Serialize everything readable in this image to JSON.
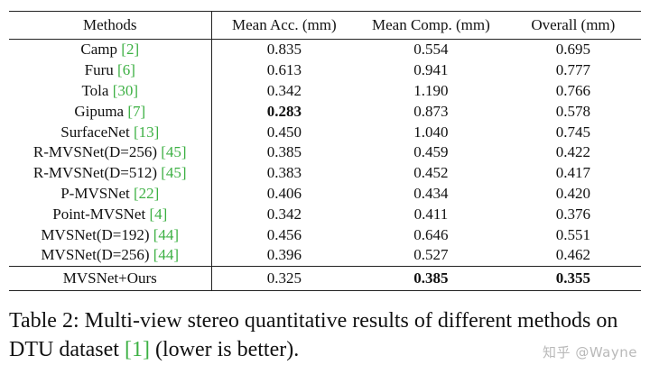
{
  "table": {
    "headers": [
      "Methods",
      "Mean Acc. (mm)",
      "Mean Comp. (mm)",
      "Overall (mm)"
    ],
    "rows": [
      {
        "method": "Camp",
        "cite": "[2]",
        "acc": "0.835",
        "comp": "0.554",
        "overall": "0.695"
      },
      {
        "method": "Furu",
        "cite": "[6]",
        "acc": "0.613",
        "comp": "0.941",
        "overall": "0.777"
      },
      {
        "method": "Tola",
        "cite": "[30]",
        "acc": "0.342",
        "comp": "1.190",
        "overall": "0.766"
      },
      {
        "method": "Gipuma",
        "cite": "[7]",
        "acc": "0.283",
        "comp": "0.873",
        "overall": "0.578",
        "bold": [
          "acc"
        ]
      },
      {
        "method": "SurfaceNet",
        "cite": "[13]",
        "acc": "0.450",
        "comp": "1.040",
        "overall": "0.745"
      },
      {
        "method": "R-MVSNet(D=256)",
        "cite": "[45]",
        "acc": "0.385",
        "comp": "0.459",
        "overall": "0.422"
      },
      {
        "method": "R-MVSNet(D=512)",
        "cite": "[45]",
        "acc": "0.383",
        "comp": "0.452",
        "overall": "0.417"
      },
      {
        "method": "P-MVSNet",
        "cite": "[22]",
        "acc": "0.406",
        "comp": "0.434",
        "overall": "0.420"
      },
      {
        "method": "Point-MVSNet",
        "cite": "[4]",
        "acc": "0.342",
        "comp": "0.411",
        "overall": "0.376"
      },
      {
        "method": "MVSNet(D=192)",
        "cite": "[44]",
        "acc": "0.456",
        "comp": "0.646",
        "overall": "0.551"
      },
      {
        "method": "MVSNet(D=256)",
        "cite": "[44]",
        "acc": "0.396",
        "comp": "0.527",
        "overall": "0.462"
      }
    ],
    "final_row": {
      "method": "MVSNet+Ours",
      "cite": "",
      "acc": "0.325",
      "comp": "0.385",
      "overall": "0.355",
      "bold": [
        "comp",
        "overall"
      ]
    }
  },
  "caption": {
    "part1": "Table 2: Multi-view stereo quantitative results of different methods on DTU dataset ",
    "cite": "[1]",
    "part2": " (lower is better)."
  },
  "watermark": "知乎 @Wayne",
  "colors": {
    "citation": "#3cb043",
    "text": "#111111",
    "watermark": "#b9b9b9"
  }
}
